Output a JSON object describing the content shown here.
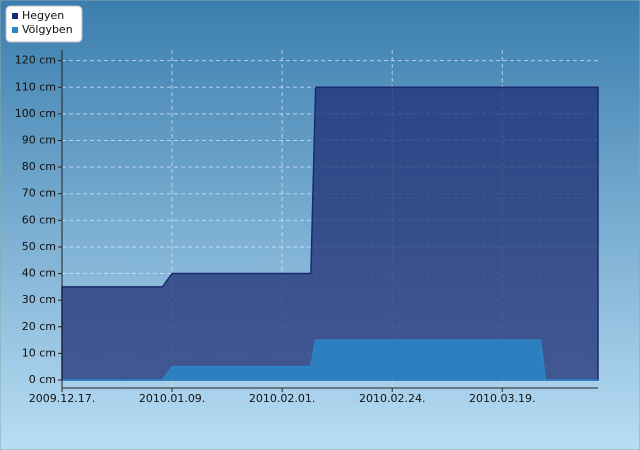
{
  "chart_data": {
    "type": "area",
    "x": [
      "2009-12-17",
      "2010-01-07",
      "2010-01-09",
      "2010-02-07",
      "2010-02-08",
      "2010-03-27",
      "2010-03-28",
      "2010-04-08"
    ],
    "series": [
      {
        "name": "Hegyen",
        "color": "#1a2a70",
        "values": [
          35,
          35,
          40,
          40,
          110,
          110,
          110,
          110
        ]
      },
      {
        "name": "Völgyben",
        "color": "#2a86c8",
        "values": [
          0,
          0,
          5,
          5,
          15,
          15,
          0,
          0
        ]
      }
    ],
    "xlim": [
      "2009-12-17",
      "2010-04-08"
    ],
    "xticks": [
      {
        "value": "2009-12-17",
        "label": "2009.12.17."
      },
      {
        "value": "2010-01-09",
        "label": "2010.01.09."
      },
      {
        "value": "2010-02-01",
        "label": "2010.02.01."
      },
      {
        "value": "2010-02-24",
        "label": "2010.02.24."
      },
      {
        "value": "2010-03-19",
        "label": "2010.03.19."
      }
    ],
    "ylim": [
      -3,
      124
    ],
    "yticks": [
      {
        "value": 0,
        "label": "0 cm"
      },
      {
        "value": 10,
        "label": "10 cm"
      },
      {
        "value": 20,
        "label": "20 cm"
      },
      {
        "value": 30,
        "label": "30 cm"
      },
      {
        "value": 40,
        "label": "40 cm"
      },
      {
        "value": 50,
        "label": "50 cm"
      },
      {
        "value": 60,
        "label": "60 cm"
      },
      {
        "value": 70,
        "label": "70 cm"
      },
      {
        "value": 80,
        "label": "80 cm"
      },
      {
        "value": 90,
        "label": "90 cm"
      },
      {
        "value": 100,
        "label": "100 cm"
      },
      {
        "value": 110,
        "label": "110 cm"
      },
      {
        "value": 120,
        "label": "120 cm"
      }
    ],
    "grid": true,
    "legend": "top-left"
  }
}
